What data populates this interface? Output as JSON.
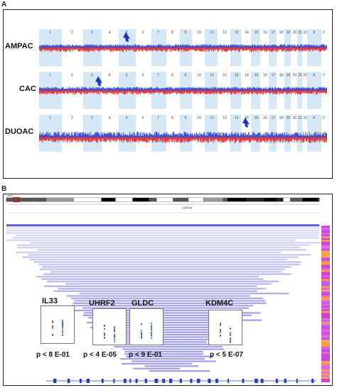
{
  "panels": {
    "a": "A",
    "b": "B"
  },
  "panel_a": {
    "tracks": [
      {
        "label": "AMPAC"
      },
      {
        "label": "CAC"
      },
      {
        "label": "DUOAC"
      }
    ],
    "chromosomes": [
      "1",
      "2",
      "3",
      "4",
      "5",
      "6",
      "7",
      "8",
      "9",
      "10",
      "11",
      "12",
      "13",
      "14",
      "15",
      "16",
      "17",
      "18",
      "19",
      "20",
      "21",
      "22",
      "X",
      "Y"
    ]
  },
  "panel_b": {
    "ideogram_label": "chr9",
    "position_label": "1,566 kb",
    "genes": [
      {
        "name": "IL33",
        "pvalue": "p < 8 E-01"
      },
      {
        "name": "UHRF2",
        "pvalue": "p < 4 E-05"
      },
      {
        "name": "GLDC",
        "pvalue": "p < 9 E-01"
      },
      {
        "name": "KDM4C",
        "pvalue": "p < 5 E-07"
      }
    ]
  },
  "colors": {
    "blue": "#2f3fd1",
    "red": "#e0262c",
    "shade": "#d6e8f5",
    "magenta": "#d63fd0",
    "dot": "#3b6fb5"
  }
}
